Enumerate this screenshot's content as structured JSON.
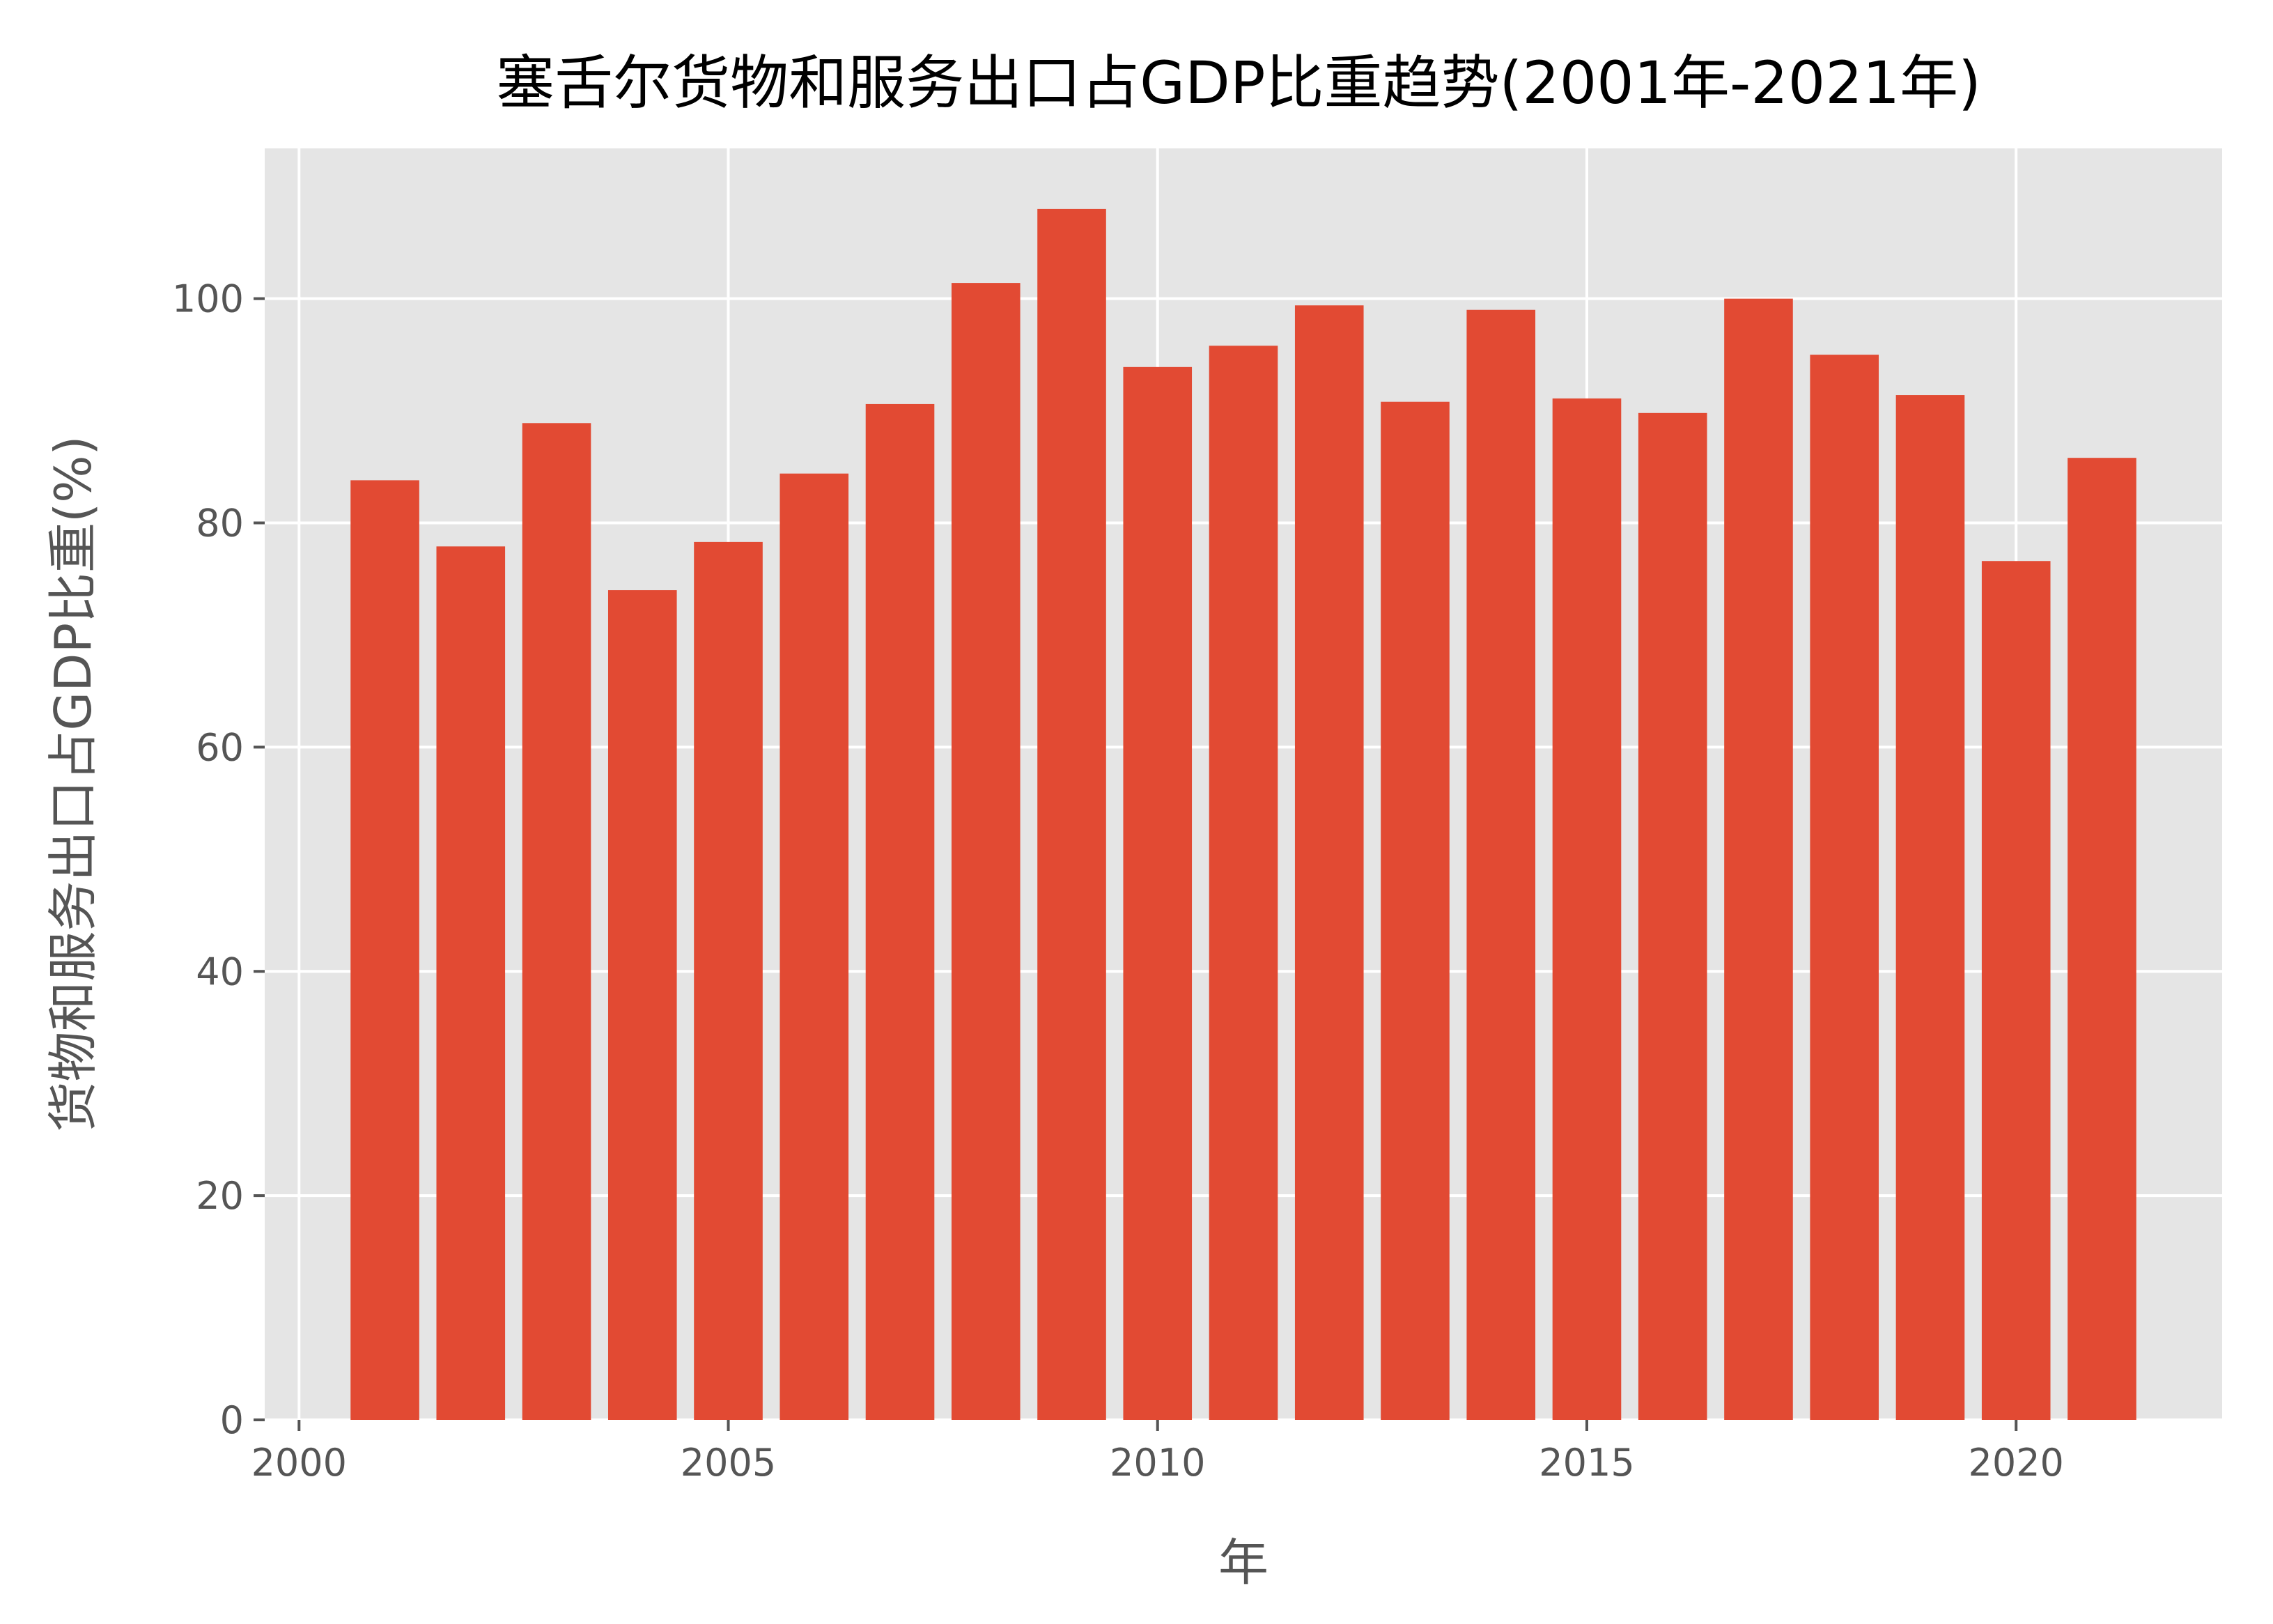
{
  "chart_data": {
    "type": "bar",
    "title": "塞舌尔货物和服务出口占GDP比重趋势(2001年-2021年)",
    "xlabel": "年",
    "ylabel": "货物和服务出口占GDP比重(%)",
    "x": [
      2001,
      2002,
      2003,
      2004,
      2005,
      2006,
      2007,
      2008,
      2009,
      2010,
      2011,
      2012,
      2013,
      2014,
      2015,
      2016,
      2017,
      2018,
      2019,
      2020,
      2021
    ],
    "values": [
      83.8,
      77.9,
      88.9,
      74.0,
      78.3,
      84.4,
      90.6,
      101.4,
      108.0,
      93.9,
      95.8,
      99.4,
      90.8,
      99.0,
      91.1,
      89.8,
      100.0,
      95.0,
      91.4,
      76.6,
      85.8
    ],
    "xlim": [
      1999.6,
      2022.4
    ],
    "ylim": [
      0,
      113.4
    ],
    "xticks": [
      "2000",
      "2005",
      "2010",
      "2015",
      "2020"
    ],
    "yticks": [
      "0",
      "20",
      "40",
      "60",
      "80",
      "100"
    ],
    "grid": true,
    "bar_color": "#e24a33",
    "background_color": "#e5e5e5"
  }
}
